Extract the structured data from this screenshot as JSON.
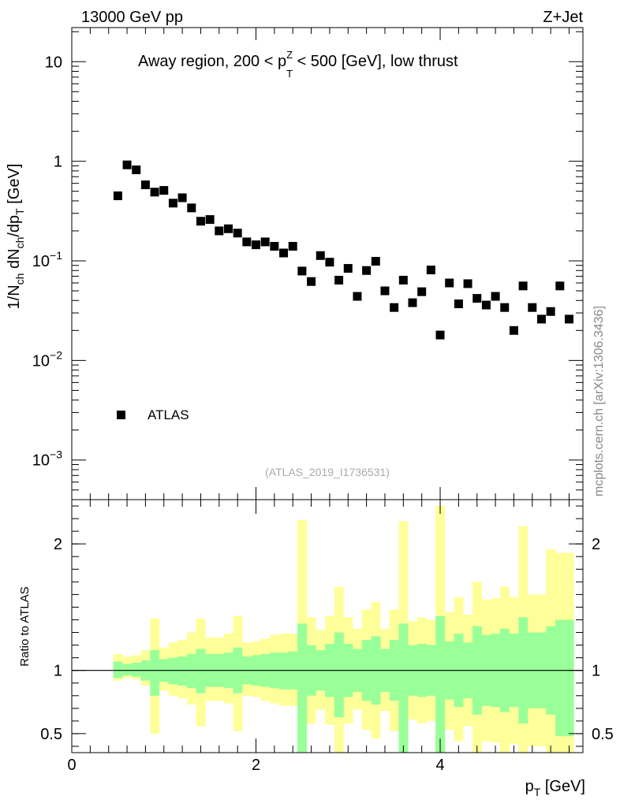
{
  "header": {
    "left": "13000 GeV pp",
    "right": "Z+Jet"
  },
  "side_label": "mcplots.cern.ch [arXiv:1306.3436]",
  "chart_data": [
    {
      "type": "scatter",
      "title_parts": {
        "before": "Away region, 200 < p",
        "sub": "T",
        "sup": "Z",
        "after": " < 500 [GeV], low thrust"
      },
      "ylabel_parts": [
        "1/N",
        "ch",
        " dN",
        "ch",
        "/dp",
        "T",
        " [GeV]"
      ],
      "yscale": "log",
      "ylim": [
        0.0004,
        22
      ],
      "xlim": [
        0,
        5.55
      ],
      "yticks": [
        {
          "value": 10,
          "label": "10"
        },
        {
          "value": 1,
          "label": "1"
        },
        {
          "value": 0.1,
          "label": "10",
          "exp": "−1"
        },
        {
          "value": 0.01,
          "label": "10",
          "exp": "−2"
        },
        {
          "value": 0.001,
          "label": "10",
          "exp": "−3"
        }
      ],
      "legend": {
        "placement": "lower-left",
        "label": "ATLAS"
      },
      "annotation": "(ATLAS_2019_I1736531)",
      "series": [
        {
          "name": "ATLAS",
          "x": [
            0.5,
            0.6,
            0.7,
            0.8,
            0.9,
            1.0,
            1.1,
            1.2,
            1.3,
            1.4,
            1.5,
            1.6,
            1.7,
            1.8,
            1.9,
            2.0,
            2.1,
            2.2,
            2.3,
            2.4,
            2.5,
            2.6,
            2.7,
            2.8,
            2.9,
            3.0,
            3.1,
            3.2,
            3.3,
            3.4,
            3.5,
            3.6,
            3.7,
            3.8,
            3.9,
            4.0,
            4.1,
            4.2,
            4.3,
            4.4,
            4.5,
            4.6,
            4.7,
            4.8,
            4.9,
            5.0,
            5.1,
            5.2,
            5.3,
            5.4
          ],
          "y": [
            0.45,
            0.92,
            0.82,
            0.58,
            0.49,
            0.51,
            0.38,
            0.43,
            0.34,
            0.25,
            0.26,
            0.2,
            0.21,
            0.19,
            0.155,
            0.145,
            0.155,
            0.14,
            0.12,
            0.14,
            0.079,
            0.062,
            0.113,
            0.097,
            0.064,
            0.084,
            0.044,
            0.08,
            0.099,
            0.05,
            0.034,
            0.064,
            0.038,
            0.049,
            0.081,
            0.018,
            0.06,
            0.037,
            0.059,
            0.042,
            0.036,
            0.044,
            0.034,
            0.02,
            0.056,
            0.034,
            0.026,
            0.031,
            0.056,
            0.026
          ]
        }
      ]
    },
    {
      "type": "bar",
      "ylabel": "Ratio to ATLAS",
      "ylim": [
        0.35,
        2.35
      ],
      "xlim": [
        0,
        5.55
      ],
      "xticks": [
        {
          "value": 0,
          "label": "0"
        },
        {
          "value": 2,
          "label": "2"
        },
        {
          "value": 4,
          "label": "4"
        }
      ],
      "yticks": [
        {
          "value": 2,
          "label": "2"
        },
        {
          "value": 1,
          "label": "1"
        },
        {
          "value": 0.5,
          "label": "0.5"
        }
      ],
      "xlabel_parts": {
        "main": "p",
        "sub": "T",
        "after": " [GeV]"
      },
      "bin_width": 0.1,
      "bin_centers": [
        0.5,
        0.6,
        0.7,
        0.8,
        0.9,
        1.0,
        1.1,
        1.2,
        1.3,
        1.4,
        1.5,
        1.6,
        1.7,
        1.8,
        1.9,
        2.0,
        2.1,
        2.2,
        2.3,
        2.4,
        2.5,
        2.6,
        2.7,
        2.8,
        2.9,
        3.0,
        3.1,
        3.2,
        3.3,
        3.4,
        3.5,
        3.6,
        3.7,
        3.8,
        3.9,
        4.0,
        4.1,
        4.2,
        4.3,
        4.4,
        4.5,
        4.6,
        4.7,
        4.8,
        4.9,
        5.0,
        5.1,
        5.2,
        5.3,
        5.4
      ],
      "bands": [
        {
          "name": "syst",
          "color": "#ffff99",
          "upper": [
            1.13,
            1.11,
            1.12,
            1.16,
            1.41,
            1.18,
            1.22,
            1.24,
            1.3,
            1.41,
            1.26,
            1.26,
            1.29,
            1.43,
            1.22,
            1.23,
            1.25,
            1.28,
            1.29,
            1.29,
            2.19,
            1.42,
            1.32,
            1.43,
            1.66,
            1.42,
            1.33,
            1.48,
            1.54,
            1.33,
            1.48,
            2.18,
            1.39,
            1.42,
            1.4,
            2.3,
            1.46,
            1.58,
            1.44,
            1.7,
            1.56,
            1.57,
            1.66,
            1.58,
            2.14,
            1.6,
            1.6,
            1.96,
            1.93,
            1.93
          ],
          "lower": [
            0.92,
            0.94,
            0.93,
            0.88,
            0.5,
            0.84,
            0.8,
            0.78,
            0.73,
            0.56,
            0.76,
            0.76,
            0.74,
            0.52,
            0.8,
            0.79,
            0.76,
            0.74,
            0.72,
            0.72,
            0.15,
            0.58,
            0.69,
            0.57,
            0.34,
            0.58,
            0.69,
            0.53,
            0.46,
            0.68,
            0.52,
            0.15,
            0.61,
            0.58,
            0.6,
            0.15,
            0.53,
            0.44,
            0.56,
            0.3,
            0.44,
            0.43,
            0.34,
            0.42,
            0.15,
            0.4,
            0.4,
            0.15,
            0.07,
            0.07
          ]
        },
        {
          "name": "stat",
          "color": "#99ff99",
          "upper": [
            1.07,
            1.05,
            1.06,
            1.08,
            1.16,
            1.09,
            1.1,
            1.11,
            1.13,
            1.17,
            1.13,
            1.13,
            1.14,
            1.18,
            1.11,
            1.12,
            1.13,
            1.14,
            1.14,
            1.15,
            1.37,
            1.2,
            1.16,
            1.21,
            1.3,
            1.21,
            1.17,
            1.24,
            1.27,
            1.17,
            1.24,
            1.37,
            1.2,
            1.21,
            1.2,
            1.43,
            1.23,
            1.29,
            1.22,
            1.35,
            1.28,
            1.29,
            1.33,
            1.29,
            1.42,
            1.3,
            1.3,
            1.35,
            1.4,
            1.4
          ],
          "lower": [
            0.94,
            0.96,
            0.95,
            0.92,
            0.8,
            0.91,
            0.89,
            0.88,
            0.86,
            0.82,
            0.87,
            0.87,
            0.86,
            0.82,
            0.89,
            0.88,
            0.87,
            0.86,
            0.85,
            0.85,
            0.1,
            0.8,
            0.84,
            0.79,
            0.63,
            0.79,
            0.83,
            0.76,
            0.73,
            0.83,
            0.76,
            0.1,
            0.8,
            0.79,
            0.8,
            0.1,
            0.77,
            0.71,
            0.78,
            0.65,
            0.72,
            0.71,
            0.67,
            0.71,
            0.58,
            0.7,
            0.7,
            0.65,
            0.48,
            0.48
          ]
        }
      ],
      "reference_line": 1
    }
  ]
}
